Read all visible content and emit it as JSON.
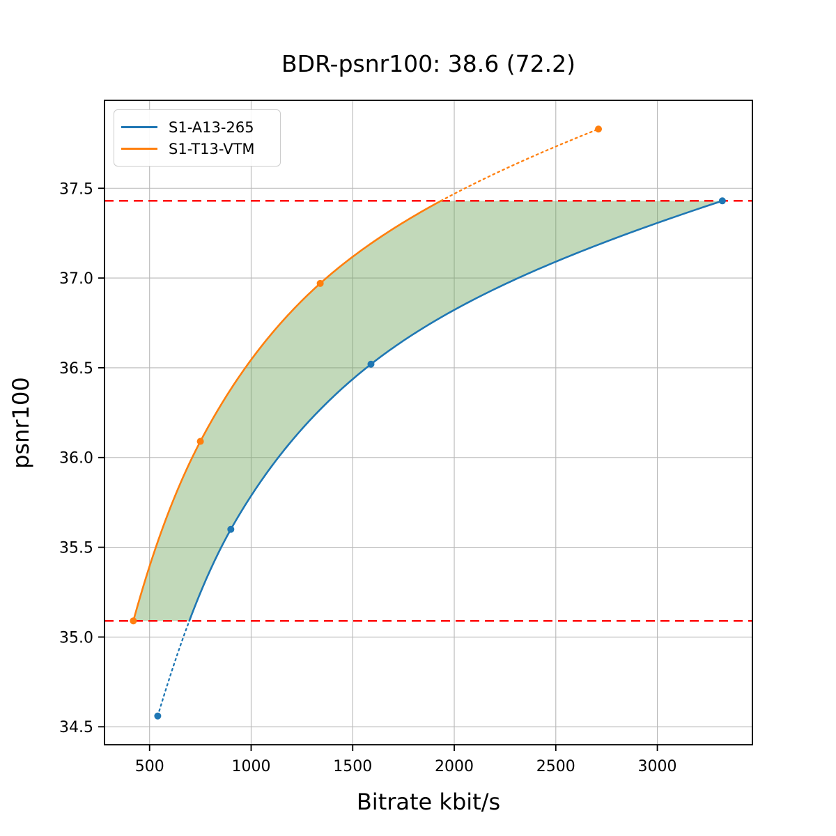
{
  "chart_data": {
    "type": "line",
    "title": "BDR-psnr100: 38.6 (72.2)",
    "xlabel": "Bitrate kbit/s",
    "ylabel": "psnr100",
    "xlim": [
      278,
      3468
    ],
    "ylim": [
      34.4,
      37.99
    ],
    "x_ticks": [
      500,
      1000,
      1500,
      2000,
      2500,
      3000
    ],
    "y_ticks": [
      34.5,
      35.0,
      35.5,
      36.0,
      36.5,
      37.0,
      37.5
    ],
    "grid": true,
    "grid_color": "#b8b8b8",
    "legend_position": "upper-left",
    "series": [
      {
        "name": "S1-A13-265",
        "color": "#1f77b4",
        "points": [
          [
            540,
            34.56
          ],
          [
            900,
            35.6
          ],
          [
            1590,
            36.52
          ],
          [
            3320,
            37.43
          ]
        ]
      },
      {
        "name": "S1-T13-VTM",
        "color": "#ff7f0e",
        "points": [
          [
            420,
            35.09
          ],
          [
            750,
            36.09
          ],
          [
            1340,
            36.97
          ],
          [
            2710,
            37.83
          ]
        ]
      }
    ],
    "overlap_lines": {
      "color": "#ff0000",
      "style": "dashed",
      "psnr_low": 35.09,
      "psnr_high": 37.43
    },
    "fill_between": {
      "color": "#6ea55a",
      "opacity": 0.42
    }
  }
}
